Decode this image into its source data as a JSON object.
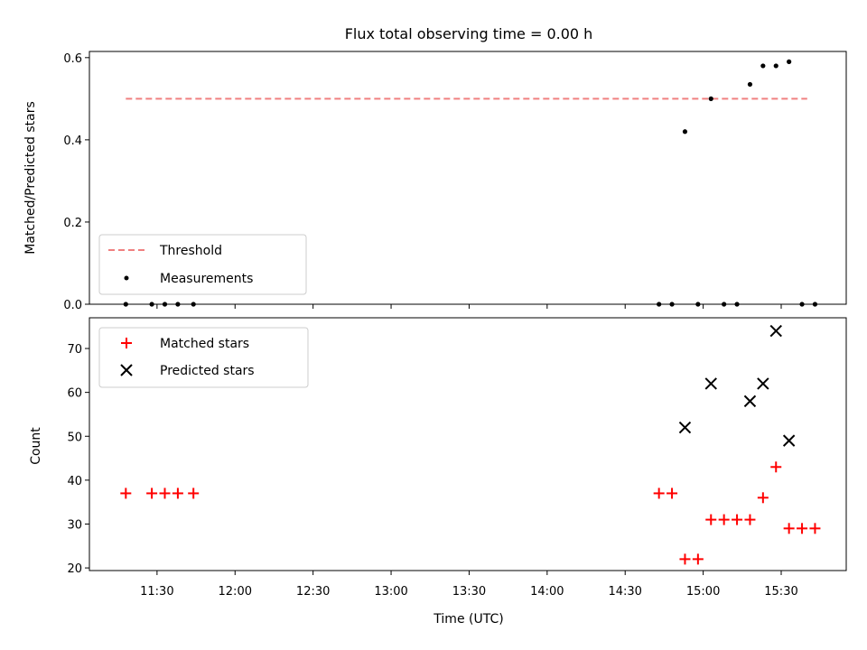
{
  "chart_data": {
    "title": "Flux total observing time = 0.00 h",
    "xlabel": "Time (UTC)",
    "x_ticks": [
      "11:30",
      "12:00",
      "12:30",
      "13:00",
      "13:30",
      "14:00",
      "14:30",
      "15:00",
      "15:30"
    ],
    "x_tick_minutes": [
      690,
      720,
      750,
      780,
      810,
      840,
      870,
      900,
      930
    ],
    "xlim_minutes": [
      664,
      955
    ],
    "panels": [
      {
        "type": "scatter",
        "ylabel": "Matched/Predicted stars",
        "ylim": [
          0,
          0.615
        ],
        "y_ticks": [
          0.0,
          0.2,
          0.4,
          0.6
        ],
        "y_tick_labels": [
          "0.0",
          "0.2",
          "0.4",
          "0.6"
        ],
        "legend_position": "lower-left",
        "threshold": {
          "name": "Threshold",
          "value": 0.5,
          "x_range_minutes": [
            678,
            940
          ],
          "color": "#f08080"
        },
        "series": [
          {
            "name": "Measurements",
            "marker": "dot",
            "color": "#000000",
            "points": [
              [
                678,
                0.0
              ],
              [
                688,
                0.0
              ],
              [
                693,
                0.0
              ],
              [
                698,
                0.0
              ],
              [
                704,
                0.0
              ],
              [
                883,
                0.0
              ],
              [
                888,
                0.0
              ],
              [
                893,
                0.42
              ],
              [
                898,
                0.0
              ],
              [
                903,
                0.5
              ],
              [
                908,
                0.0
              ],
              [
                913,
                0.0
              ],
              [
                918,
                0.535
              ],
              [
                923,
                0.58
              ],
              [
                928,
                0.58
              ],
              [
                933,
                0.59
              ],
              [
                938,
                0.0
              ],
              [
                943,
                0.0
              ]
            ]
          }
        ]
      },
      {
        "type": "scatter",
        "ylabel": "Count",
        "ylim": [
          19.4,
          77
        ],
        "y_ticks": [
          20,
          30,
          40,
          50,
          60,
          70
        ],
        "y_tick_labels": [
          "20",
          "30",
          "40",
          "50",
          "60",
          "70"
        ],
        "legend_position": "upper-left",
        "series": [
          {
            "name": "Matched stars",
            "marker": "plus",
            "color": "#ff0000",
            "points": [
              [
                678,
                37
              ],
              [
                688,
                37
              ],
              [
                693,
                37
              ],
              [
                698,
                37
              ],
              [
                704,
                37
              ],
              [
                883,
                37
              ],
              [
                888,
                37
              ],
              [
                893,
                22
              ],
              [
                898,
                22
              ],
              [
                903,
                31
              ],
              [
                908,
                31
              ],
              [
                913,
                31
              ],
              [
                918,
                31
              ],
              [
                923,
                36
              ],
              [
                928,
                43
              ],
              [
                933,
                29
              ],
              [
                938,
                29
              ],
              [
                943,
                29
              ]
            ]
          },
          {
            "name": "Predicted stars",
            "marker": "x",
            "color": "#000000",
            "points": [
              [
                893,
                52
              ],
              [
                903,
                62
              ],
              [
                918,
                58
              ],
              [
                923,
                62
              ],
              [
                928,
                74
              ],
              [
                933,
                49
              ]
            ]
          }
        ]
      }
    ]
  }
}
